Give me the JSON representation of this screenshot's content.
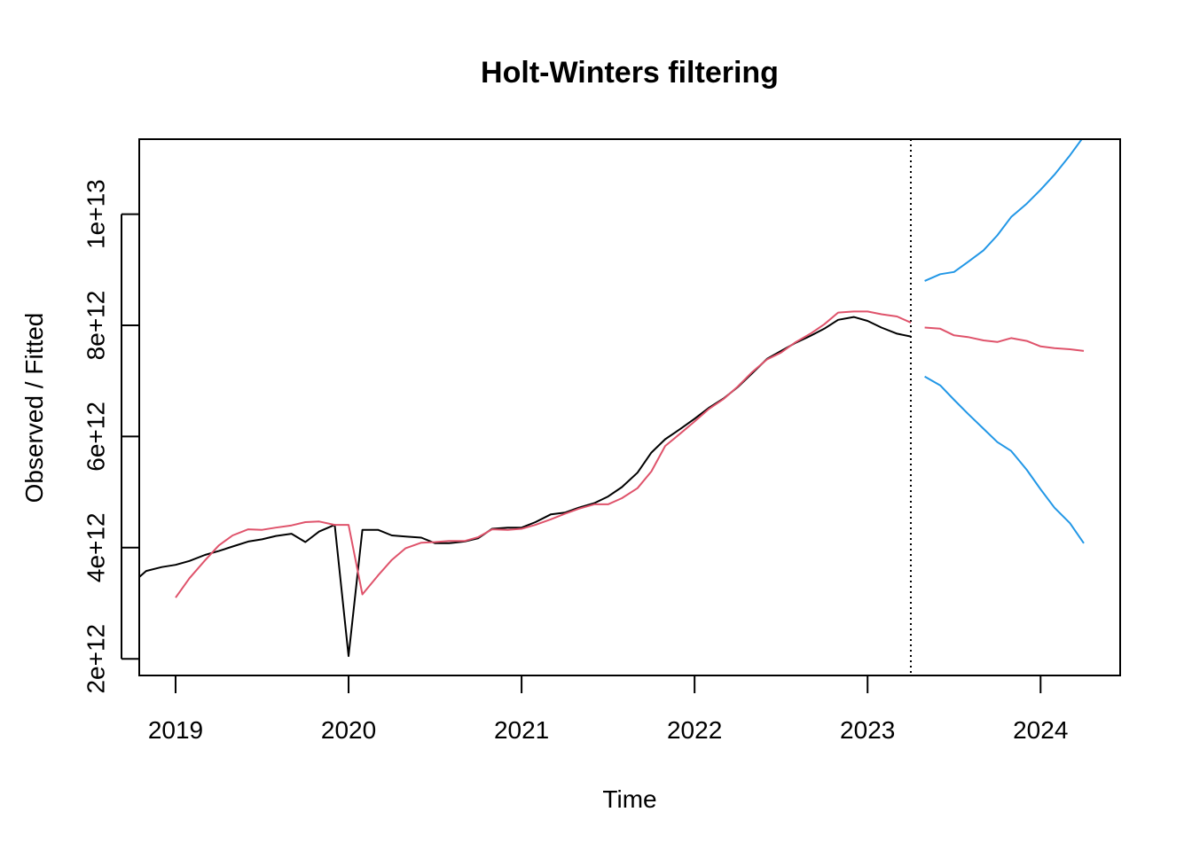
{
  "chart_data": {
    "type": "line",
    "title": "Holt-Winters filtering",
    "xlabel": "Time",
    "ylabel": "Observed / Fitted",
    "xlim": [
      2018.79,
      2024.46
    ],
    "ylim": [
      1700000000000.0,
      11350000000000.0
    ],
    "x_ticks": [
      2019,
      2020,
      2021,
      2022,
      2023,
      2024
    ],
    "x_tick_labels": [
      "2019",
      "2020",
      "2021",
      "2022",
      "2023",
      "2024"
    ],
    "y_ticks": [
      2000000000000.0,
      4000000000000.0,
      6000000000000.0,
      8000000000000.0,
      10000000000000.0
    ],
    "y_tick_labels": [
      "2e+12",
      "4e+12",
      "6e+12",
      "8e+12",
      "1e+13"
    ],
    "forecast_start": 2023.25,
    "grid": false,
    "colors": {
      "observed": "#000000",
      "fitted": "#DF536B",
      "bounds": "#2297E6",
      "marker_line": "#000000"
    },
    "series": [
      {
        "key": "observed",
        "x": [
          2018.79,
          2018.83,
          2018.92,
          2019.0,
          2019.08,
          2019.17,
          2019.25,
          2019.33,
          2019.42,
          2019.5,
          2019.58,
          2019.67,
          2019.75,
          2019.83,
          2019.92,
          2020.0,
          2020.08,
          2020.17,
          2020.25,
          2020.33,
          2020.42,
          2020.5,
          2020.58,
          2020.67,
          2020.75,
          2020.83,
          2020.92,
          2021.0,
          2021.08,
          2021.17,
          2021.25,
          2021.33,
          2021.42,
          2021.5,
          2021.58,
          2021.67,
          2021.75,
          2021.83,
          2021.92,
          2022.0,
          2022.08,
          2022.17,
          2022.25,
          2022.33,
          2022.42,
          2022.5,
          2022.58,
          2022.67,
          2022.75,
          2022.83,
          2022.92,
          2023.0,
          2023.08,
          2023.17,
          2023.25
        ],
        "values": [
          3470000000000.0,
          3580000000000.0,
          3650000000000.0,
          3690000000000.0,
          3760000000000.0,
          3870000000000.0,
          3940000000000.0,
          4020000000000.0,
          4110000000000.0,
          4150000000000.0,
          4210000000000.0,
          4250000000000.0,
          4100000000000.0,
          4290000000000.0,
          4410000000000.0,
          2050000000000.0,
          4320000000000.0,
          4320000000000.0,
          4220000000000.0,
          4200000000000.0,
          4180000000000.0,
          4080000000000.0,
          4080000000000.0,
          4110000000000.0,
          4170000000000.0,
          4340000000000.0,
          4360000000000.0,
          4360000000000.0,
          4460000000000.0,
          4600000000000.0,
          4630000000000.0,
          4720000000000.0,
          4800000000000.0,
          4920000000000.0,
          5090000000000.0,
          5350000000000.0,
          5710000000000.0,
          5950000000000.0,
          6140000000000.0,
          6320000000000.0,
          6510000000000.0,
          6690000000000.0,
          6890000000000.0,
          7130000000000.0,
          7400000000000.0,
          7540000000000.0,
          7680000000000.0,
          7810000000000.0,
          7940000000000.0,
          8100000000000.0,
          8150000000000.0,
          8080000000000.0,
          7960000000000.0,
          7850000000000.0,
          7800000000000.0
        ]
      },
      {
        "key": "fitted",
        "x": [
          2019.0,
          2019.08,
          2019.17,
          2019.25,
          2019.33,
          2019.42,
          2019.5,
          2019.58,
          2019.67,
          2019.75,
          2019.83,
          2019.92,
          2020.0,
          2020.08,
          2020.17,
          2020.25,
          2020.33,
          2020.42,
          2020.5,
          2020.58,
          2020.67,
          2020.75,
          2020.83,
          2020.92,
          2021.0,
          2021.08,
          2021.17,
          2021.25,
          2021.33,
          2021.42,
          2021.5,
          2021.58,
          2021.67,
          2021.75,
          2021.83,
          2021.92,
          2022.0,
          2022.08,
          2022.17,
          2022.25,
          2022.33,
          2022.42,
          2022.5,
          2022.58,
          2022.67,
          2022.75,
          2022.83,
          2022.92,
          2023.0,
          2023.08,
          2023.17,
          2023.25
        ],
        "values": [
          3100000000000.0,
          3450000000000.0,
          3770000000000.0,
          4040000000000.0,
          4220000000000.0,
          4330000000000.0,
          4320000000000.0,
          4360000000000.0,
          4400000000000.0,
          4460000000000.0,
          4470000000000.0,
          4410000000000.0,
          4410000000000.0,
          3160000000000.0,
          3500000000000.0,
          3780000000000.0,
          3990000000000.0,
          4090000000000.0,
          4100000000000.0,
          4120000000000.0,
          4120000000000.0,
          4190000000000.0,
          4330000000000.0,
          4320000000000.0,
          4340000000000.0,
          4410000000000.0,
          4510000000000.0,
          4610000000000.0,
          4700000000000.0,
          4780000000000.0,
          4780000000000.0,
          4890000000000.0,
          5070000000000.0,
          5370000000000.0,
          5830000000000.0,
          6060000000000.0,
          6270000000000.0,
          6490000000000.0,
          6680000000000.0,
          6900000000000.0,
          7150000000000.0,
          7390000000000.0,
          7510000000000.0,
          7690000000000.0,
          7850000000000.0,
          8020000000000.0,
          8230000000000.0,
          8250000000000.0,
          8250000000000.0,
          8200000000000.0,
          8160000000000.0,
          8050000000000.0
        ]
      },
      {
        "key": "forecast",
        "x": [
          2023.33,
          2023.42,
          2023.5,
          2023.58,
          2023.67,
          2023.75,
          2023.83,
          2023.92,
          2024.0,
          2024.08,
          2024.17,
          2024.25
        ],
        "values": [
          7960000000000.0,
          7940000000000.0,
          7820000000000.0,
          7790000000000.0,
          7730000000000.0,
          7700000000000.0,
          7770000000000.0,
          7720000000000.0,
          7620000000000.0,
          7590000000000.0,
          7570000000000.0,
          7540000000000.0
        ]
      },
      {
        "key": "upper",
        "x": [
          2023.33,
          2023.42,
          2023.5,
          2023.58,
          2023.67,
          2023.75,
          2023.83,
          2023.92,
          2024.0,
          2024.08,
          2024.17,
          2024.25
        ],
        "values": [
          8800000000000.0,
          8920000000000.0,
          8960000000000.0,
          9140000000000.0,
          9350000000000.0,
          9620000000000.0,
          9950000000000.0,
          10190000000000.0,
          10440000000000.0,
          10710000000000.0,
          11060000000000.0,
          11400000000000.0
        ]
      },
      {
        "key": "lower",
        "x": [
          2023.33,
          2023.42,
          2023.5,
          2023.58,
          2023.67,
          2023.75,
          2023.83,
          2023.92,
          2024.0,
          2024.08,
          2024.17,
          2024.25
        ],
        "values": [
          7080000000000.0,
          6920000000000.0,
          6660000000000.0,
          6410000000000.0,
          6140000000000.0,
          5900000000000.0,
          5740000000000.0,
          5400000000000.0,
          5050000000000.0,
          4720000000000.0,
          4440000000000.0,
          4080000000000.0
        ]
      }
    ]
  }
}
